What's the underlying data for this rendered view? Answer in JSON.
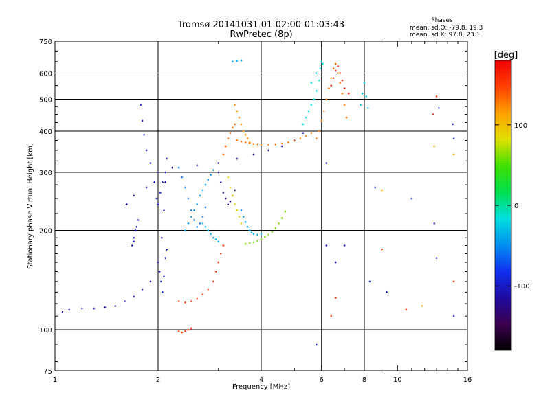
{
  "chart_data": {
    "type": "scatter",
    "title": "Tromsø 20141031 01:02:00-01:03:43",
    "subtitle": "RwPretec (8p)",
    "xlabel": "Frequency [MHz]",
    "ylabel": "Stationary phase Virtual Height [km]",
    "x_scale": "log",
    "y_scale": "log",
    "xlim": [
      1,
      16
    ],
    "ylim": [
      75,
      750
    ],
    "x_ticks": [
      1,
      2,
      4,
      6,
      8,
      10,
      16
    ],
    "x_tick_labels": [
      "1",
      "2",
      "4",
      "6",
      "8",
      "10",
      "16"
    ],
    "y_ticks": [
      75,
      100,
      200,
      300,
      400,
      500,
      600,
      750
    ],
    "y_tick_labels": [
      "75",
      "100",
      "200",
      "300",
      "400",
      "500",
      "600",
      "750"
    ],
    "grid": true,
    "grid_x": [
      2,
      4,
      6,
      8
    ],
    "grid_y": [
      100,
      200,
      300,
      400,
      500,
      600
    ],
    "stats": {
      "header": "Phases",
      "line_o": "mean, sd,O: -79.8, 19.3",
      "line_x": "mean, sd,X:  97.8, 23.1"
    },
    "colorbar": {
      "label": "[deg]",
      "range": [
        -180,
        180
      ],
      "ticks": [
        100,
        0,
        -100
      ],
      "tick_labels": [
        "100",
        "0",
        "-100"
      ],
      "colormap": [
        "#000000",
        "#3c0050",
        "#1e0aa0",
        "#1030f0",
        "#0090f0",
        "#00e0e0",
        "#00e050",
        "#40e000",
        "#e0e000",
        "#ffa000",
        "#ff4000",
        "#f00000"
      ]
    },
    "series": [
      {
        "x": [
          1.05,
          1.1,
          1.2,
          1.3,
          1.4,
          1.5,
          1.6,
          1.7,
          1.8,
          1.9,
          2.0,
          2.05,
          2.08,
          2.1,
          2.12
        ],
        "y": [
          113,
          115,
          116,
          116,
          117,
          118,
          122,
          126,
          132,
          140,
          160,
          190,
          230,
          280,
          330
        ],
        "phase": -110
      },
      {
        "x": [
          1.62,
          1.7,
          1.85,
          2.0,
          2.2,
          2.6,
          3.0,
          3.4,
          3.8,
          4.2,
          4.6,
          5.0,
          5.3
        ],
        "y": [
          240,
          255,
          270,
          300,
          310,
          315,
          320,
          330,
          340,
          350,
          360,
          375,
          395
        ],
        "phase": -120
      },
      {
        "x": [
          1.78,
          1.8,
          1.82,
          1.85,
          1.9,
          1.95,
          1.98,
          2.0,
          2.03,
          2.06,
          2.1
        ],
        "y": [
          480,
          430,
          390,
          350,
          320,
          280,
          250,
          240,
          260,
          280,
          300
        ],
        "phase": -100
      },
      {
        "x": [
          1.68,
          1.7,
          1.72,
          1.75,
          1.73,
          1.7
        ],
        "y": [
          180,
          190,
          200,
          215,
          205,
          185
        ],
        "phase": -100
      },
      {
        "x": [
          2.02,
          2.04,
          2.06,
          2.08,
          2.1,
          2.12
        ],
        "y": [
          150,
          140,
          130,
          145,
          165,
          175
        ],
        "phase": -95
      },
      {
        "x": [
          2.3,
          2.35,
          2.4,
          2.45,
          2.5,
          2.55,
          2.6,
          2.65,
          2.7,
          2.75
        ],
        "y": [
          310,
          290,
          270,
          250,
          230,
          215,
          205,
          210,
          220,
          235
        ],
        "phase": -60
      },
      {
        "x": [
          2.4,
          2.45,
          2.5,
          2.55,
          2.6,
          2.65,
          2.7,
          2.75,
          2.8,
          2.85,
          2.9
        ],
        "y": [
          200,
          210,
          220,
          230,
          240,
          255,
          265,
          275,
          285,
          295,
          305
        ],
        "phase": -45
      },
      {
        "x": [
          2.7,
          2.75,
          2.8,
          2.85,
          2.9,
          2.95,
          3.0
        ],
        "y": [
          210,
          205,
          200,
          195,
          190,
          188,
          185
        ],
        "phase": -40
      },
      {
        "x": [
          2.3,
          2.4,
          2.5,
          2.6,
          2.7,
          2.8,
          2.9,
          2.95,
          3.0,
          3.05,
          3.1
        ],
        "y": [
          122,
          121,
          122,
          124,
          128,
          132,
          140,
          150,
          160,
          170,
          180
        ],
        "phase": 155
      },
      {
        "x": [
          2.3,
          2.35,
          2.4,
          2.45,
          2.5
        ],
        "y": [
          99,
          98,
          99,
          100,
          101
        ],
        "phase": 150
      },
      {
        "x": [
          3.0,
          3.05,
          3.1,
          3.15,
          3.2,
          3.25,
          3.3,
          3.35
        ],
        "y": [
          300,
          280,
          260,
          250,
          240,
          245,
          255,
          265
        ],
        "phase": -130
      },
      {
        "x": [
          3.1,
          3.15,
          3.2,
          3.25,
          3.3,
          3.35
        ],
        "y": [
          340,
          360,
          380,
          395,
          410,
          420
        ],
        "phase": 135
      },
      {
        "x": [
          3.35,
          3.4,
          3.45,
          3.5,
          3.55,
          3.6,
          3.65,
          3.7
        ],
        "y": [
          480,
          460,
          440,
          420,
          400,
          390,
          380,
          370
        ],
        "phase": 120
      },
      {
        "x": [
          3.2,
          3.25,
          3.3,
          3.35,
          3.4,
          3.45,
          3.5
        ],
        "y": [
          290,
          270,
          255,
          240,
          230,
          220,
          210
        ],
        "phase": 90
      },
      {
        "x": [
          3.5,
          3.55,
          3.6,
          3.65,
          3.7,
          3.75,
          3.8,
          3.9,
          4.0
        ],
        "y": [
          230,
          220,
          212,
          205,
          200,
          197,
          195,
          194,
          195
        ],
        "phase": -40
      },
      {
        "x": [
          3.6,
          3.7,
          3.8,
          3.9,
          4.0,
          4.1,
          4.2,
          4.3,
          4.4,
          4.5,
          4.6,
          4.7
        ],
        "y": [
          182,
          183,
          184,
          186,
          188,
          191,
          194,
          198,
          203,
          210,
          218,
          228
        ],
        "phase": 60
      },
      {
        "x": [
          3.4,
          3.5,
          3.6,
          3.7,
          3.8,
          3.9,
          4.0,
          4.2,
          4.4,
          4.6,
          4.8,
          5.0,
          5.2,
          5.4,
          5.6
        ],
        "y": [
          375,
          372,
          370,
          368,
          366,
          365,
          364,
          364,
          365,
          367,
          370,
          374,
          380,
          387,
          395
        ],
        "phase": 130
      },
      {
        "x": [
          3.3,
          3.4,
          3.5
        ],
        "y": [
          650,
          652,
          655
        ],
        "phase": -40
      },
      {
        "x": [
          5.3,
          5.4,
          5.5,
          5.6,
          5.7,
          5.8,
          5.9,
          5.95,
          6.0,
          6.05,
          5.8,
          5.6
        ],
        "y": [
          420,
          440,
          460,
          480,
          500,
          530,
          570,
          620,
          650,
          640,
          600,
          560
        ],
        "phase": -20
      },
      {
        "x": [
          5.8,
          5.9,
          6.0,
          6.1,
          6.2,
          6.3,
          6.4,
          6.5,
          6.6,
          6.7,
          6.8,
          6.9,
          7.0,
          7.1
        ],
        "y": [
          380,
          400,
          430,
          460,
          500,
          540,
          580,
          620,
          640,
          600,
          560,
          520,
          480,
          440
        ],
        "phase": 130
      },
      {
        "x": [
          6.4,
          6.5,
          6.6,
          6.7,
          6.8,
          6.9,
          7.0,
          7.2
        ],
        "y": [
          550,
          580,
          610,
          630,
          600,
          570,
          540,
          520
        ],
        "phase": 170
      },
      {
        "x": [
          7.8,
          7.9,
          8.0,
          8.1,
          8.2
        ],
        "y": [
          480,
          520,
          560,
          510,
          470
        ],
        "phase": -30
      },
      {
        "x": [
          6.2,
          6.6,
          7.0,
          8.3,
          8.6,
          9.3,
          11.0,
          12.8,
          13.0,
          13.2,
          14.5,
          14.6,
          14.6,
          5.8,
          6.2
        ],
        "y": [
          180,
          160,
          180,
          140,
          270,
          130,
          250,
          210,
          165,
          470,
          420,
          380,
          110,
          90,
          320
        ],
        "phase": -100
      },
      {
        "x": [
          6.4,
          6.6,
          9.0,
          10.6,
          12.7,
          13.0,
          14.6
        ],
        "y": [
          110,
          125,
          175,
          115,
          450,
          510,
          140
        ],
        "phase": 160
      },
      {
        "x": [
          9.0,
          11.8,
          12.8,
          14.6
        ],
        "y": [
          265,
          118,
          360,
          340
        ],
        "phase": 110
      }
    ]
  }
}
